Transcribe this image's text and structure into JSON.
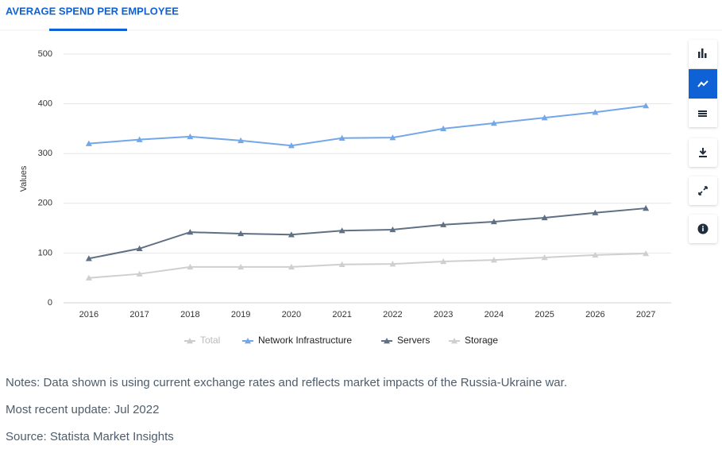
{
  "chart_data": {
    "type": "line",
    "title": "AVERAGE SPEND PER EMPLOYEE",
    "ylabel": "Values",
    "categories": [
      "2016",
      "2017",
      "2018",
      "2019",
      "2020",
      "2021",
      "2022",
      "2023",
      "2024",
      "2025",
      "2026",
      "2027"
    ],
    "ylim": [
      0,
      500
    ],
    "yticks": [
      0,
      100,
      200,
      300,
      400,
      500
    ],
    "grid": true,
    "series": [
      {
        "name": "Total",
        "color": "#cccccc",
        "visible": false
      },
      {
        "name": "Network Infrastructure",
        "color": "#74a7e8",
        "values": [
          320,
          328,
          334,
          326,
          316,
          331,
          332,
          350,
          361,
          372,
          383,
          396
        ]
      },
      {
        "name": "Servers",
        "color": "#5f7084",
        "values": [
          89,
          109,
          142,
          139,
          137,
          145,
          147,
          157,
          163,
          171,
          181,
          190
        ]
      },
      {
        "name": "Storage",
        "color": "#cfcfcf",
        "values": [
          50,
          58,
          72,
          72,
          72,
          77,
          78,
          83,
          86,
          91,
          96,
          99
        ]
      }
    ]
  },
  "notes": [
    "Notes: Data shown is using current exchange rates and reflects market impacts of the Russia-Ukraine war.",
    "Most recent update: Jul 2022",
    "Source: Statista Market Insights"
  ]
}
